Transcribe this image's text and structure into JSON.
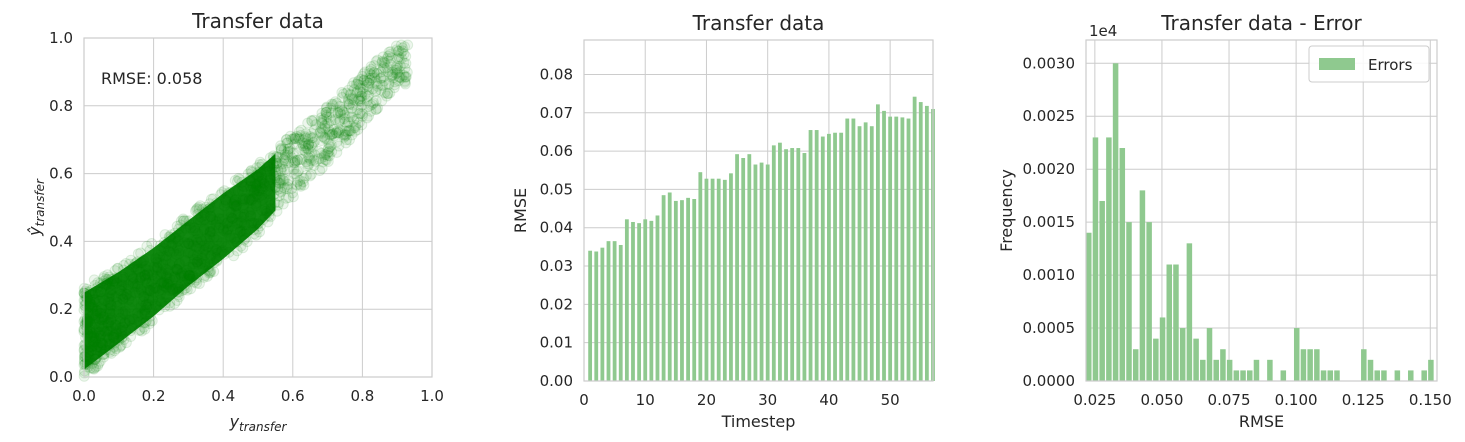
{
  "chart_data": [
    {
      "type": "scatter",
      "title": "Transfer data",
      "xlabel": "y",
      "xlabel_sub": "transfer",
      "ylabel": "ŷ",
      "ylabel_sub": "transfer",
      "xlim": [
        0,
        1
      ],
      "ylim": [
        0,
        1
      ],
      "xticks": [
        "0.0",
        "0.2",
        "0.4",
        "0.6",
        "0.8",
        "1.0"
      ],
      "yticks": [
        "0.0",
        "0.2",
        "0.4",
        "0.6",
        "0.8",
        "1.0"
      ],
      "annotation": "RMSE: 0.058",
      "color": "#008000",
      "point_alpha": 0.07,
      "grid": true,
      "density_band": [
        {
          "x": 0.0,
          "y_low": 0.0,
          "y_high": 0.27
        },
        {
          "x": 0.1,
          "y_low": 0.08,
          "y_high": 0.33
        },
        {
          "x": 0.2,
          "y_low": 0.16,
          "y_high": 0.4
        },
        {
          "x": 0.3,
          "y_low": 0.25,
          "y_high": 0.48
        },
        {
          "x": 0.4,
          "y_low": 0.33,
          "y_high": 0.56
        },
        {
          "x": 0.5,
          "y_low": 0.42,
          "y_high": 0.63
        },
        {
          "x": 0.6,
          "y_low": 0.53,
          "y_high": 0.72
        },
        {
          "x": 0.7,
          "y_low": 0.63,
          "y_high": 0.8
        },
        {
          "x": 0.8,
          "y_low": 0.74,
          "y_high": 0.9
        },
        {
          "x": 0.9,
          "y_low": 0.86,
          "y_high": 0.98
        }
      ]
    },
    {
      "type": "bar",
      "title": "Transfer data",
      "xlabel": "Timestep",
      "ylabel": "RMSE",
      "xlim": [
        0,
        57
      ],
      "ylim": [
        0,
        0.089
      ],
      "xticks": [
        0,
        10,
        20,
        30,
        40,
        50
      ],
      "yticks": [
        "0.00",
        "0.01",
        "0.02",
        "0.03",
        "0.04",
        "0.05",
        "0.06",
        "0.07",
        "0.08"
      ],
      "color": "#8fc98f",
      "grid": true,
      "x": [
        1,
        2,
        3,
        4,
        5,
        6,
        7,
        8,
        9,
        10,
        11,
        12,
        13,
        14,
        15,
        16,
        17,
        18,
        19,
        20,
        21,
        22,
        23,
        24,
        25,
        26,
        27,
        28,
        29,
        30,
        31,
        32,
        33,
        34,
        35,
        36,
        37,
        38,
        39,
        40,
        41,
        42,
        43,
        44,
        45,
        46,
        47,
        48,
        49,
        50,
        51,
        52,
        53,
        54,
        55,
        56,
        57
      ],
      "values": [
        0.034,
        0.0338,
        0.0348,
        0.0365,
        0.0365,
        0.0355,
        0.0422,
        0.0415,
        0.0412,
        0.0422,
        0.0418,
        0.0432,
        0.0485,
        0.0492,
        0.047,
        0.0472,
        0.0478,
        0.0475,
        0.0545,
        0.0528,
        0.0528,
        0.0528,
        0.0525,
        0.0542,
        0.0592,
        0.0582,
        0.0592,
        0.0565,
        0.057,
        0.0565,
        0.0615,
        0.0622,
        0.0605,
        0.0608,
        0.0608,
        0.0595,
        0.0655,
        0.0655,
        0.0638,
        0.0645,
        0.0648,
        0.0648,
        0.0685,
        0.0685,
        0.0665,
        0.0675,
        0.0665,
        0.0722,
        0.0705,
        0.069,
        0.069,
        0.0688,
        0.0685,
        0.0742,
        0.0728,
        0.0718,
        0.071
      ]
    },
    {
      "type": "bar",
      "title": "Transfer data - Error",
      "xlabel": "RMSE",
      "ylabel": "Frequency",
      "offset_text": "1e4",
      "xlim": [
        0.0217,
        0.1525
      ],
      "ylim": [
        0,
        0.00322
      ],
      "xticks": [
        "0.025",
        "0.050",
        "0.075",
        "0.100",
        "0.125",
        "0.150"
      ],
      "yticks": [
        "0.0000",
        "0.0005",
        "0.0010",
        "0.0015",
        "0.0020",
        "0.0025",
        "0.0030"
      ],
      "legend": [
        {
          "name": "Errors"
        }
      ],
      "legend_position": "upper right",
      "color": "#8fc98f",
      "grid": true,
      "bin_width": 0.0025,
      "bin_starts": [
        0.0217,
        0.0242,
        0.0267,
        0.0292,
        0.0317,
        0.0342,
        0.0367,
        0.0392,
        0.0417,
        0.0442,
        0.0467,
        0.0492,
        0.0517,
        0.0542,
        0.0567,
        0.0592,
        0.0617,
        0.0642,
        0.0667,
        0.0692,
        0.0717,
        0.0742,
        0.0767,
        0.0792,
        0.0817,
        0.0842,
        0.0867,
        0.0892,
        0.0917,
        0.0942,
        0.0967,
        0.0992,
        0.1017,
        0.1042,
        0.1067,
        0.1092,
        0.1117,
        0.1142,
        0.1167,
        0.1192,
        0.1217,
        0.1242,
        0.1267,
        0.1292,
        0.1317,
        0.1342,
        0.1367,
        0.1392,
        0.1417,
        0.1442,
        0.1467,
        0.1492
      ],
      "values": [
        0.0014,
        0.0023,
        0.0017,
        0.0023,
        0.003,
        0.0022,
        0.0015,
        0.0003,
        0.0018,
        0.0015,
        0.0004,
        0.0006,
        0.0011,
        0.0011,
        0.0005,
        0.0013,
        0.0004,
        0.0002,
        0.0005,
        0.0002,
        0.0003,
        0.0002,
        0.0001,
        0.0001,
        0.0001,
        0.0002,
        0.0,
        0.0002,
        0.0,
        0.0001,
        0.0,
        0.0005,
        0.0003,
        0.0003,
        0.0003,
        0.0001,
        0.0001,
        0.0001,
        0.0,
        0.0,
        0.0,
        0.0003,
        0.0002,
        0.0001,
        0.0001,
        0.0,
        0.0001,
        0.0,
        0.0001,
        0.0,
        0.0001,
        0.0002
      ]
    }
  ]
}
